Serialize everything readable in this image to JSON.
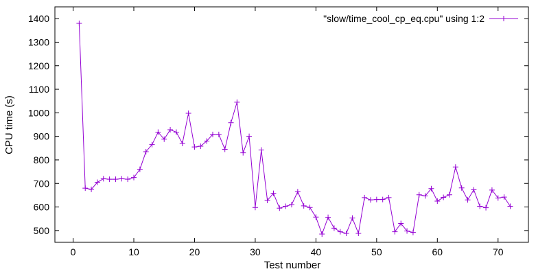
{
  "chart_data": {
    "type": "line",
    "title": "",
    "xlabel": "Test number",
    "ylabel": "CPU time (s)",
    "xlim": [
      -3,
      75
    ],
    "ylim": [
      450,
      1450
    ],
    "xticks": [
      0,
      10,
      20,
      30,
      40,
      50,
      60,
      70
    ],
    "yticks": [
      500,
      600,
      700,
      800,
      900,
      1000,
      1100,
      1200,
      1300,
      1400
    ],
    "grid": false,
    "legend_position": "top-right",
    "series": [
      {
        "name": "\"slow/time_cool_cp_eq.cpu\" using 1:2",
        "color": "#9400d3",
        "marker": "plus",
        "x": [
          1,
          2,
          3,
          4,
          5,
          6,
          7,
          8,
          9,
          10,
          11,
          12,
          13,
          14,
          15,
          16,
          17,
          18,
          19,
          20,
          21,
          22,
          23,
          24,
          25,
          26,
          27,
          28,
          29,
          30,
          31,
          32,
          33,
          34,
          35,
          36,
          37,
          38,
          39,
          40,
          41,
          42,
          43,
          44,
          45,
          46,
          47,
          48,
          49,
          50,
          51,
          52,
          53,
          54,
          55,
          56,
          57,
          58,
          59,
          60,
          61,
          62,
          63,
          64,
          65,
          66,
          67,
          68,
          69,
          70,
          71,
          72
        ],
        "y": [
          1380,
          680,
          675,
          705,
          720,
          718,
          718,
          720,
          718,
          725,
          760,
          835,
          865,
          918,
          888,
          928,
          918,
          870,
          998,
          855,
          858,
          880,
          908,
          908,
          845,
          958,
          1045,
          830,
          900,
          598,
          842,
          628,
          658,
          595,
          603,
          610,
          665,
          605,
          598,
          557,
          485,
          556,
          510,
          495,
          488,
          553,
          488,
          640,
          630,
          632,
          632,
          640,
          495,
          530,
          498,
          492,
          652,
          647,
          678,
          625,
          641,
          652,
          770,
          681,
          630,
          673,
          603,
          597,
          672,
          638,
          642,
          603
        ]
      }
    ]
  }
}
